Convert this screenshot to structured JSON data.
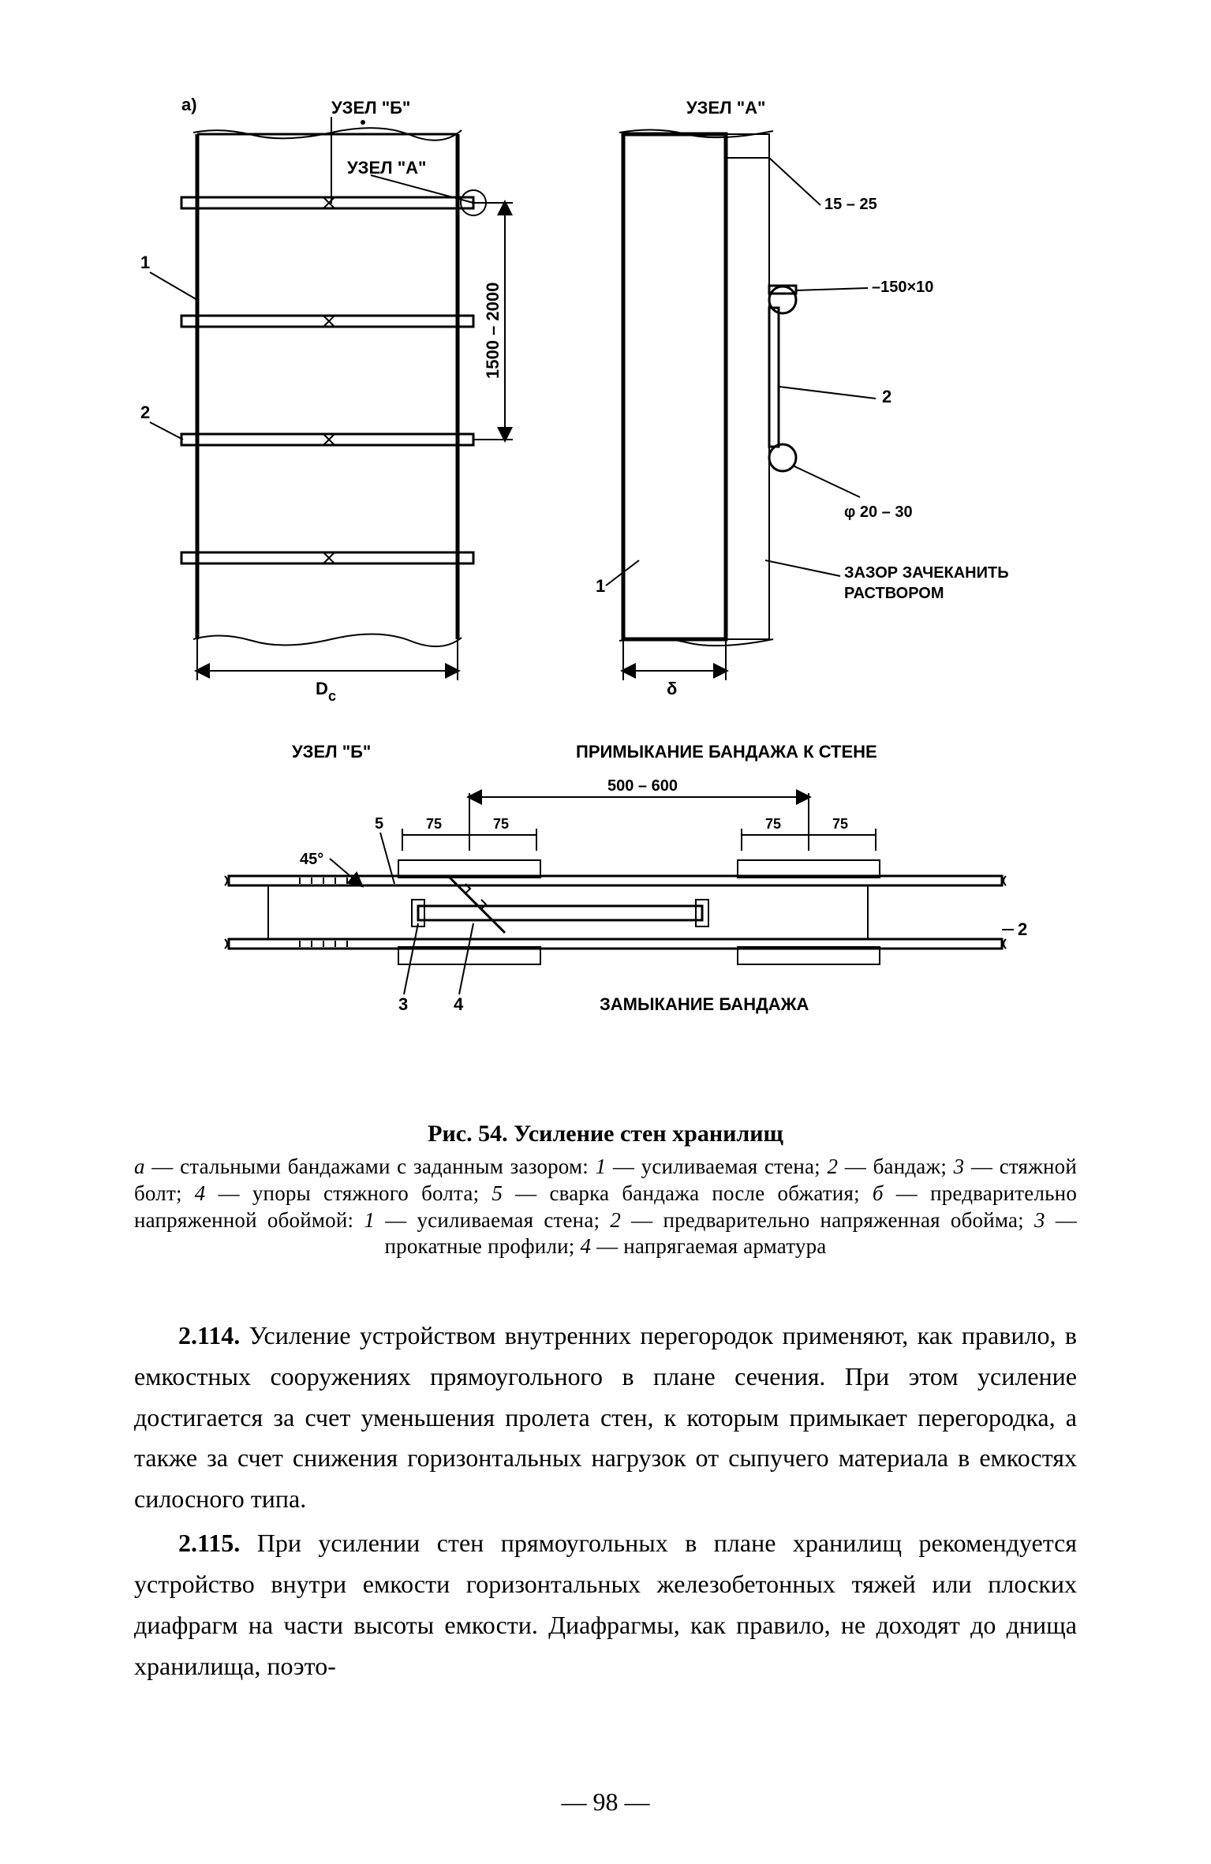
{
  "figure": {
    "panel_label": "а)",
    "node_b_label": "УЗЕЛ \"Б\"",
    "node_a_label": "УЗЕЛ \"А\"",
    "node_a_label2": "УЗЕЛ \"А\"",
    "callout_1": "1",
    "callout_2": "2",
    "dim_height": "1500 – 2000",
    "dim_diameter": "D",
    "dim_diameter_sub": "c",
    "detail_a": {
      "gap_range": "15 – 25",
      "angle_spec": "–150×10",
      "callout_2": "2",
      "rod_dia": "φ 20 – 30",
      "note_line1": "ЗАЗОР ЗАЧЕКАНИТЬ",
      "note_line2": "РАСТВОРОМ",
      "callout_1": "1",
      "dim_delta": "δ"
    },
    "node_b_title": "УЗЕЛ \"Б\"",
    "detail_b_title": "ПРИМЫКАНИЕ БАНДАЖА К СТЕНЕ",
    "detail_c": {
      "dim_span": "500 – 600",
      "dim_75a": "75",
      "dim_75b": "75",
      "dim_75c": "75",
      "dim_75d": "75",
      "angle_45": "45°",
      "callout_5": "5",
      "callout_2": "2",
      "callout_3": "3",
      "callout_4": "4",
      "title": "ЗАМЫКАНИЕ БАНДАЖА"
    }
  },
  "caption": {
    "title": "Рис. 54. Усиление стен хранилищ",
    "body_html": "<i>а</i> — стальными бандажами с заданным зазором: <i>1</i> — усиливаемая стена; <i>2</i> — бандаж; <i>3</i> — стяжной болт; <i>4</i> — упоры стяжного болта; <i>5</i> — сварка бандажа после обжатия; <i>б</i> — предварительно напряженной обоймой: <i>1</i> — усиливаемая стена; <i>2</i> — предварительно напряженная обойма; <i>3</i> — прокатные профили; <i>4</i> — напрягаемая арматура"
  },
  "paragraphs": {
    "p1": "<b>2.114.</b> Усиление устройством внутренних перегородок применяют, как правило, в емкостных сооружениях прямоугольного в плане сечения. При этом усиление достигается за счет уменьшения пролета стен, к которым примыкает перегородка, а также за счет снижения горизонтальных нагрузок от сыпучего материала в емкостях силосного типа.",
    "p2": "<b>2.115.</b> При усилении стен прямоугольных в плане хранилищ рекомендуется устройство внутри емкости горизонтальных железобетонных тяжей или плоских диафрагм на части высоты емкости. Диафрагмы, как правило, не доходят до днища хранилища, поэто-"
  },
  "page_number": "— 98 —",
  "style": {
    "line_color": "#000000",
    "hatch_spacing": 10,
    "dot_spacing": 14,
    "font_label": "Arial"
  }
}
